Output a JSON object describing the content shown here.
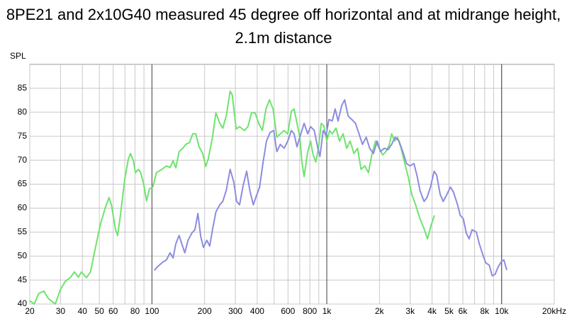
{
  "chart_data": {
    "type": "line",
    "title": "8PE21 and 2x10G40 measured 45 degree off horizontal and at midrange height, 2.1m distance",
    "ylabel": "SPL",
    "xlog": true,
    "grid": true,
    "xlim": [
      20,
      20000
    ],
    "ylim": [
      40,
      90
    ],
    "yticks": [
      40,
      45,
      50,
      55,
      60,
      65,
      70,
      75,
      80,
      85
    ],
    "xticks": [
      20,
      30,
      40,
      50,
      60,
      80,
      100,
      200,
      300,
      400,
      600,
      800,
      {
        "value": 1000,
        "label": "1k"
      },
      {
        "value": 2000,
        "label": "2k"
      },
      {
        "value": 3000,
        "label": "3k"
      },
      {
        "value": 4000,
        "label": "4k"
      },
      {
        "value": 5000,
        "label": "5k"
      },
      {
        "value": 6000,
        "label": "6k"
      },
      {
        "value": 8000,
        "label": "8k"
      },
      {
        "value": 10000,
        "label": "10k"
      },
      {
        "value": 20000,
        "label": "20kHz"
      }
    ],
    "xminorticks": [
      70,
      90,
      500,
      700,
      900,
      7000,
      9000
    ],
    "xmajorticks": [
      100,
      1000,
      10000
    ],
    "series": [
      {
        "color": "#6ee36e",
        "x": [
          20,
          21.2,
          22.5,
          24.1,
          25.5,
          26.5,
          28,
          29.9,
          31.9,
          34.3,
          36,
          37.9,
          39.5,
          42.2,
          44.5,
          47.5,
          50.7,
          54,
          56.8,
          58.6,
          61.9,
          63.6,
          66,
          69.8,
          73.3,
          75.4,
          78.3,
          80.5,
          83.6,
          86.2,
          89.6,
          93.1,
          96.7,
          101,
          106,
          114,
          121,
          127,
          132,
          137,
          143,
          150,
          156,
          164,
          171,
          178,
          186,
          195,
          203,
          210,
          222,
          232,
          244,
          254,
          266,
          280,
          288,
          303,
          317,
          338,
          354,
          371,
          389,
          408,
          428,
          449,
          470,
          493,
          518,
          542,
          570,
          598,
          627,
          650,
          676,
          701,
          721,
          742,
          778,
          808,
          832,
          864,
          897,
          929,
          962,
          1000,
          1038,
          1075,
          1128,
          1182,
          1240,
          1300,
          1360,
          1430,
          1500,
          1570,
          1650,
          1730,
          1810,
          1900,
          1990,
          2090,
          2180,
          2280,
          2350,
          2440,
          2540,
          2660,
          2780,
          2920,
          3060,
          3220,
          3410,
          3620,
          3770,
          3940,
          4130
        ],
        "values": [
          40.7,
          40,
          42.2,
          42.7,
          41.2,
          40.7,
          40,
          43,
          44.7,
          45.6,
          46.7,
          45.6,
          46.7,
          45.5,
          46.7,
          51.8,
          56.6,
          60,
          62.2,
          60.7,
          55.5,
          54.3,
          58.5,
          65.9,
          70.3,
          71.4,
          69.9,
          67.4,
          68.1,
          67.4,
          65.1,
          61.5,
          64,
          64.4,
          67.4,
          68.1,
          68.8,
          68.5,
          69.9,
          68.4,
          71.8,
          72.5,
          73.3,
          73.7,
          75.5,
          75.5,
          72.8,
          71.4,
          68.7,
          70.3,
          74.8,
          79.9,
          77.7,
          76.7,
          79.2,
          84.4,
          83.6,
          76.5,
          77,
          76.2,
          77,
          79.9,
          79.9,
          77.7,
          76.2,
          80.7,
          82.6,
          80.7,
          74.8,
          75.5,
          76.2,
          75.5,
          80.2,
          80.7,
          77.7,
          74.8,
          69.6,
          66.6,
          71.8,
          74,
          71.4,
          69.6,
          72.5,
          77.7,
          77.2,
          74,
          76.2,
          75.5,
          76.7,
          74,
          75.5,
          72.5,
          74,
          71.4,
          72.5,
          68.1,
          68.8,
          67.4,
          71.1,
          74,
          72.5,
          71.1,
          71.8,
          73.3,
          75.5,
          74,
          74.8,
          72.5,
          69.6,
          66.6,
          62.9,
          60.7,
          57.8,
          55.5,
          53.6,
          56.3,
          58.5
        ]
      },
      {
        "color": "#8c8ce0",
        "x": [
          103,
          107,
          114,
          121,
          127,
          132,
          137,
          143,
          148,
          154,
          161,
          169,
          176,
          183,
          190,
          197,
          206,
          214,
          222,
          232,
          244,
          254,
          266,
          280,
          294,
          305,
          317,
          333,
          348,
          363,
          380,
          395,
          413,
          432,
          452,
          474,
          497,
          518,
          542,
          570,
          598,
          627,
          650,
          676,
          701,
          742,
          778,
          808,
          848,
          889,
          914,
          954,
          991,
          1029,
          1075,
          1117,
          1160,
          1217,
          1265,
          1325,
          1390,
          1460,
          1530,
          1600,
          1680,
          1760,
          1850,
          1940,
          2030,
          2130,
          2240,
          2350,
          2460,
          2590,
          2720,
          2860,
          2990,
          3150,
          3290,
          3410,
          3600,
          3740,
          3920,
          4110,
          4250,
          4450,
          4630,
          4810,
          5100,
          5300,
          5600,
          5800,
          6040,
          6280,
          6520,
          6780,
          7170,
          7450,
          7740,
          8110,
          8500,
          8840,
          9180,
          9540,
          10000,
          10300,
          10700
        ],
        "values": [
          47,
          47.7,
          48.6,
          49.2,
          50.7,
          49.6,
          52.6,
          54.3,
          52.6,
          50.7,
          53.3,
          54.8,
          55.5,
          58.9,
          54.1,
          51.8,
          53.3,
          52.1,
          55.5,
          59.2,
          60.7,
          61.4,
          63.7,
          68.1,
          65.4,
          61.4,
          60.7,
          64.9,
          67.7,
          63.7,
          60.7,
          62.5,
          64.4,
          69.6,
          74,
          75.8,
          76.2,
          71.8,
          73.3,
          72.5,
          74,
          76.2,
          75.5,
          72.8,
          74.8,
          77.7,
          75.5,
          77,
          76.2,
          72.5,
          70.8,
          76.2,
          75.2,
          78.5,
          78.2,
          80.7,
          78.2,
          81.4,
          82.6,
          79.2,
          78.5,
          77.7,
          75.5,
          73.3,
          74.8,
          72.5,
          71.4,
          74,
          71.8,
          72.5,
          72.2,
          73.3,
          74.8,
          74,
          71.8,
          69.3,
          68.8,
          69.3,
          66.6,
          63.7,
          61.4,
          62.2,
          64.4,
          67.7,
          66.9,
          62.9,
          61.4,
          62.5,
          64.4,
          63.4,
          60.7,
          58.5,
          57.8,
          54.8,
          53.6,
          55.5,
          55,
          52.6,
          50.7,
          48.6,
          48.1,
          45.9,
          46.2,
          47.7,
          48.9,
          49.2,
          47.1
        ]
      }
    ]
  }
}
